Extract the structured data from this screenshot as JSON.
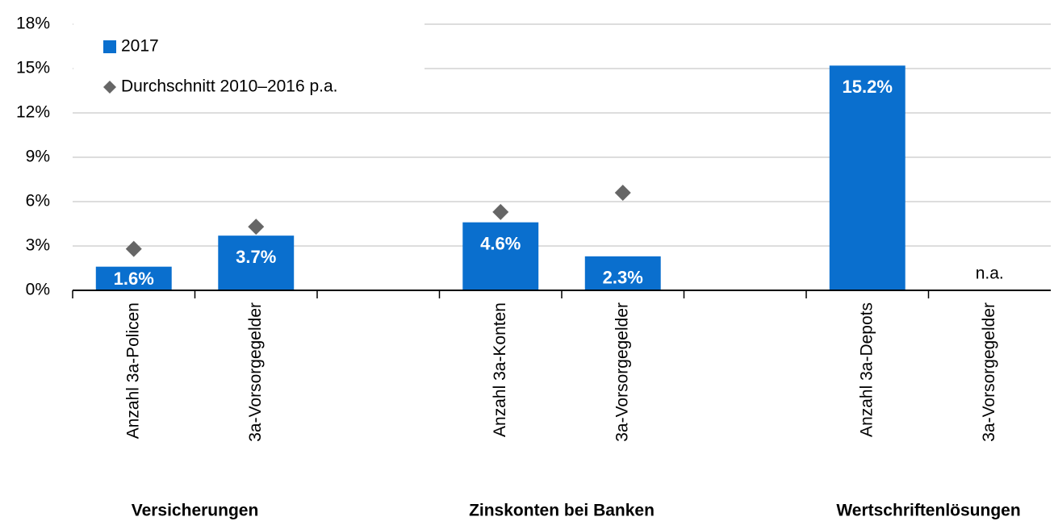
{
  "chart_data": {
    "type": "bar",
    "categories": [
      "Anzahl 3a-Policen",
      "3a-Vorsorgegelder",
      null,
      "Anzahl 3a-Konten",
      "3a-Vorsorgegelder",
      null,
      "Anzahl 3a-Depots",
      "3a-Vorsorgegelder"
    ],
    "groups": [
      "Versicherungen",
      "Zinskonten bei Banken",
      "Wertschriftenlösungen"
    ],
    "series": [
      {
        "name": "2017",
        "type": "bar",
        "color": "#0a6fce",
        "values": [
          1.6,
          3.7,
          null,
          4.6,
          2.3,
          null,
          15.2,
          null
        ],
        "value_labels": [
          "1.6%",
          "3.7%",
          null,
          "4.6%",
          "2.3%",
          null,
          "15.2%",
          "n.a."
        ]
      },
      {
        "name": "Durchschnitt 2010–2016 p.a.",
        "type": "scatter",
        "color": "#666666",
        "values": [
          2.8,
          4.3,
          null,
          5.3,
          6.6,
          null,
          null,
          null
        ]
      }
    ],
    "ylim": [
      0,
      18
    ],
    "yticks": [
      {
        "value": 0,
        "label": "0%"
      },
      {
        "value": 3,
        "label": "3%"
      },
      {
        "value": 6,
        "label": "6%"
      },
      {
        "value": 9,
        "label": "9%"
      },
      {
        "value": 12,
        "label": "12%"
      },
      {
        "value": 15,
        "label": "15%"
      },
      {
        "value": 18,
        "label": "18%"
      }
    ],
    "grid": true,
    "legend": "top-left"
  }
}
